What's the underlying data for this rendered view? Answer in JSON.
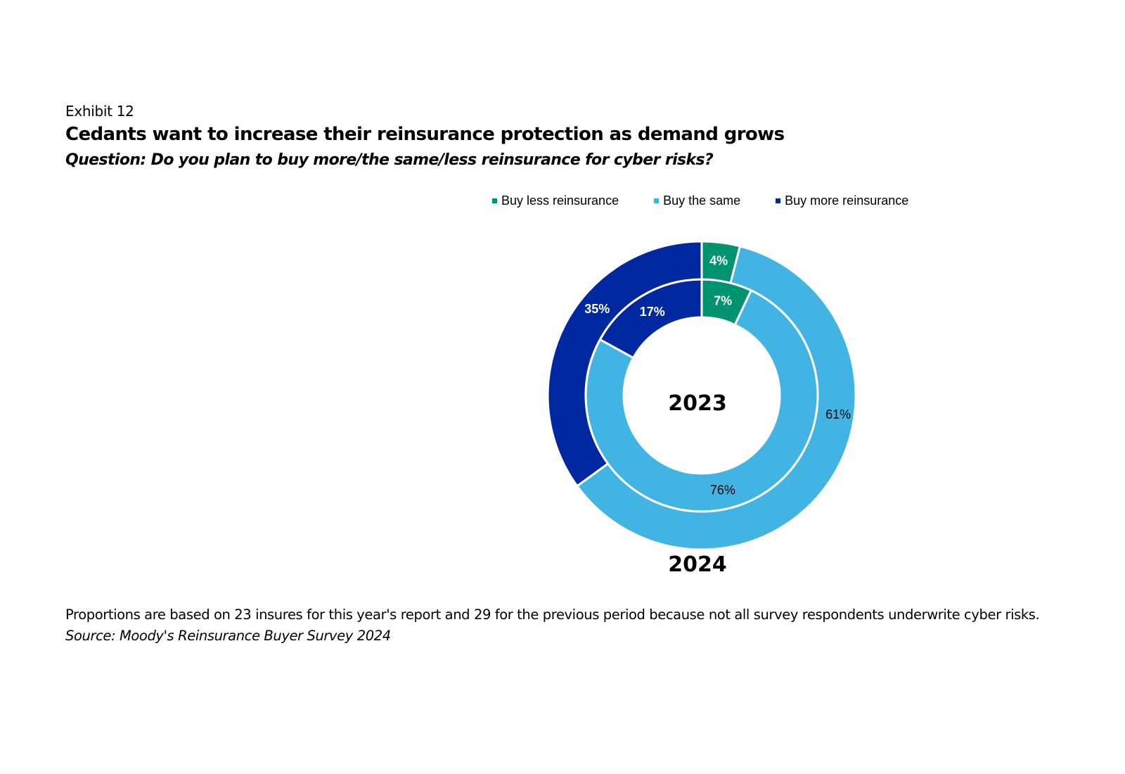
{
  "header": {
    "exhibit": "Exhibit 12",
    "title": "Cedants want to increase their reinsurance protection as demand grows",
    "question": "Question: Do you plan to buy more/the same/less reinsurance for cyber risks?"
  },
  "footer": {
    "note": "Proportions are based on 23 insures for this year's report and 29 for the previous period because not all survey respondents underwrite cyber risks.",
    "source": "Source: Moody's Reinsurance Buyer Survey 2024"
  },
  "chart_data": {
    "type": "pie",
    "subtype": "nested-donut",
    "title": "Cedants want to increase their reinsurance protection as demand grows",
    "legend": [
      "Buy less reinsurance",
      "Buy the same",
      "Buy more reinsurance"
    ],
    "legend_position": "top",
    "colors": {
      "Buy less reinsurance": "#00936F",
      "Buy the same": "#42B4E4",
      "Buy more reinsurance": "#0028A0"
    },
    "label_colors": {
      "Buy less reinsurance": "#FFFFFF",
      "Buy the same": "#000000",
      "Buy more reinsurance": "#FFFFFF"
    },
    "series": [
      {
        "name": "2023",
        "ring": "inner",
        "values": [
          7,
          76,
          17
        ],
        "labels": [
          "7%",
          "76%",
          "17%"
        ]
      },
      {
        "name": "2024",
        "ring": "outer",
        "values": [
          4,
          61,
          35
        ],
        "labels": [
          "4%",
          "61%",
          "35%"
        ]
      }
    ],
    "ring_labels": {
      "inner": "2023",
      "outer": "2024"
    }
  }
}
